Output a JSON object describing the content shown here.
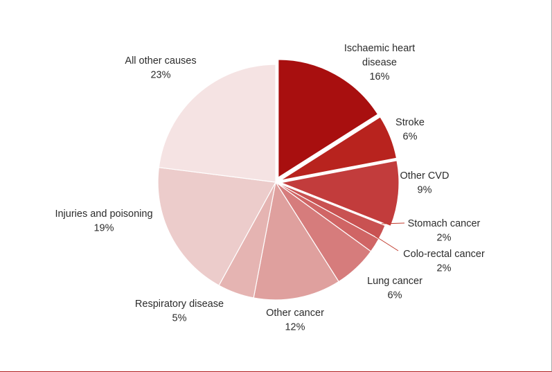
{
  "chart_data": {
    "type": "pie",
    "title": "",
    "slices": [
      {
        "name": "Ischaemic heart disease",
        "label_lines": [
          "Ischaemic heart",
          "disease"
        ],
        "value": 16,
        "value_label": "16%",
        "color": "#a80f0f",
        "exploded": true
      },
      {
        "name": "Stroke",
        "label_lines": [
          "Stroke"
        ],
        "value": 6,
        "value_label": "6%",
        "color": "#b8231e",
        "exploded": true
      },
      {
        "name": "Other CVD",
        "label_lines": [
          "Other CVD"
        ],
        "value": 9,
        "value_label": "9%",
        "color": "#c23c3c",
        "exploded": true
      },
      {
        "name": "Stomach cancer",
        "label_lines": [
          "Stomach cancer"
        ],
        "value": 2,
        "value_label": "2%",
        "color": "#c95252",
        "exploded": false
      },
      {
        "name": "Colo-rectal cancer",
        "label_lines": [
          "Colo-rectal cancer"
        ],
        "value": 2,
        "value_label": "2%",
        "color": "#d06565",
        "exploded": false
      },
      {
        "name": "Lung cancer",
        "label_lines": [
          "Lung cancer"
        ],
        "value": 6,
        "value_label": "6%",
        "color": "#d67c7c",
        "exploded": false
      },
      {
        "name": "Other cancer",
        "label_lines": [
          "Other cancer"
        ],
        "value": 12,
        "value_label": "12%",
        "color": "#dfa09e",
        "exploded": false
      },
      {
        "name": "Respiratory disease",
        "label_lines": [
          "Respiratory disease"
        ],
        "value": 5,
        "value_label": "5%",
        "color": "#e5b4b2",
        "exploded": false
      },
      {
        "name": "Injuries and poisoning",
        "label_lines": [
          "Injuries and poisoning"
        ],
        "value": 19,
        "value_label": "19%",
        "color": "#eccccb",
        "exploded": false
      },
      {
        "name": "All other causes",
        "label_lines": [
          "All other causes"
        ],
        "value": 23,
        "value_label": "23%",
        "color": "#f5e3e3",
        "exploded": false
      }
    ]
  }
}
